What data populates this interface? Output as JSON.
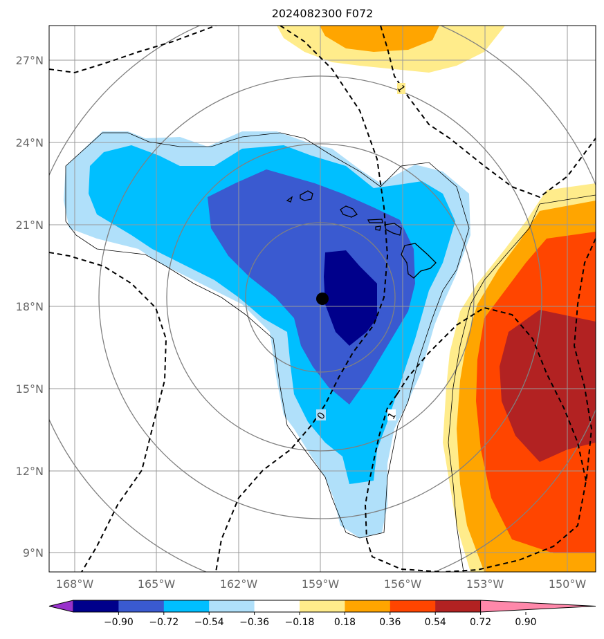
{
  "map": {
    "title": "2024082300 F072",
    "lon_ticks": [
      "168°W",
      "165°W",
      "162°W",
      "159°W",
      "156°W",
      "153°W",
      "150°W"
    ],
    "lat_ticks": [
      "27°N",
      "24°N",
      "21°N",
      "18°N",
      "15°N",
      "12°N",
      "9°N"
    ],
    "contour_labels": [
      "1",
      "0",
      "1"
    ],
    "center_marker": "storm-center",
    "colorbar": {
      "ticks": [
        "−0.90",
        "−0.72",
        "−0.54",
        "−0.36",
        "−0.18",
        "0.18",
        "0.36",
        "0.54",
        "0.72",
        "0.90"
      ],
      "colors": [
        "#9932cc",
        "#00008b",
        "#3a5ad0",
        "#00bfff",
        "#b0e0fa",
        "#ffffff",
        "#ffec8b",
        "#ffa500",
        "#ff4500",
        "#b22222",
        "#ff88aa"
      ]
    },
    "fill_colors": {
      "light_blue": "#b0e0fa",
      "sky_blue": "#00bfff",
      "royal_blue": "#3a5ad0",
      "navy": "#00008b",
      "yellow": "#ffec8b",
      "orange": "#ffa500",
      "red_orange": "#ff4500",
      "dark_red": "#b22222"
    }
  }
}
